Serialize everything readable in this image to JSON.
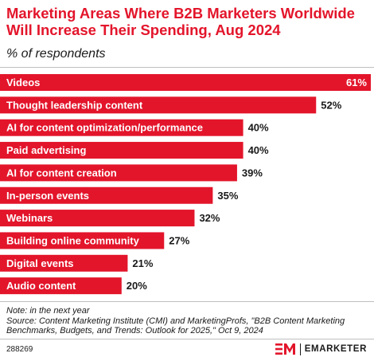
{
  "header": {
    "title": "Marketing Areas Where B2B Marketers Worldwide Will Increase Their Spending, Aug 2024",
    "subtitle": "% of respondents"
  },
  "chart_data": {
    "type": "bar",
    "orientation": "horizontal",
    "categories": [
      "Videos",
      "Thought leadership content",
      "AI for content optimization/performance",
      "Paid advertising",
      "AI for content creation",
      "In-person events",
      "Webinars",
      "Building online community",
      "Digital events",
      "Audio content"
    ],
    "values": [
      61,
      52,
      40,
      40,
      39,
      35,
      32,
      27,
      21,
      20
    ],
    "value_labels": [
      "61%",
      "52%",
      "40%",
      "40%",
      "39%",
      "35%",
      "32%",
      "27%",
      "21%",
      "20%"
    ],
    "xlim": [
      0,
      61
    ],
    "bar_color": "#e3152b",
    "grid": false,
    "legend": "none"
  },
  "footer": {
    "note": "Note: in the next year",
    "source": "Source: Content Marketing Institute (CMI) and MarketingProfs, \"B2B Content Marketing Benchmarks, Budgets, and Trends: Outlook for 2025,\" Oct 9, 2024",
    "chart_id": "288269",
    "brand": "EMARKETER"
  },
  "colors": {
    "accent": "#e3152b",
    "text": "#1a1a1a",
    "rule": "#bfbfbf"
  },
  "icons": {
    "brand_logo": "em-logo-icon"
  }
}
